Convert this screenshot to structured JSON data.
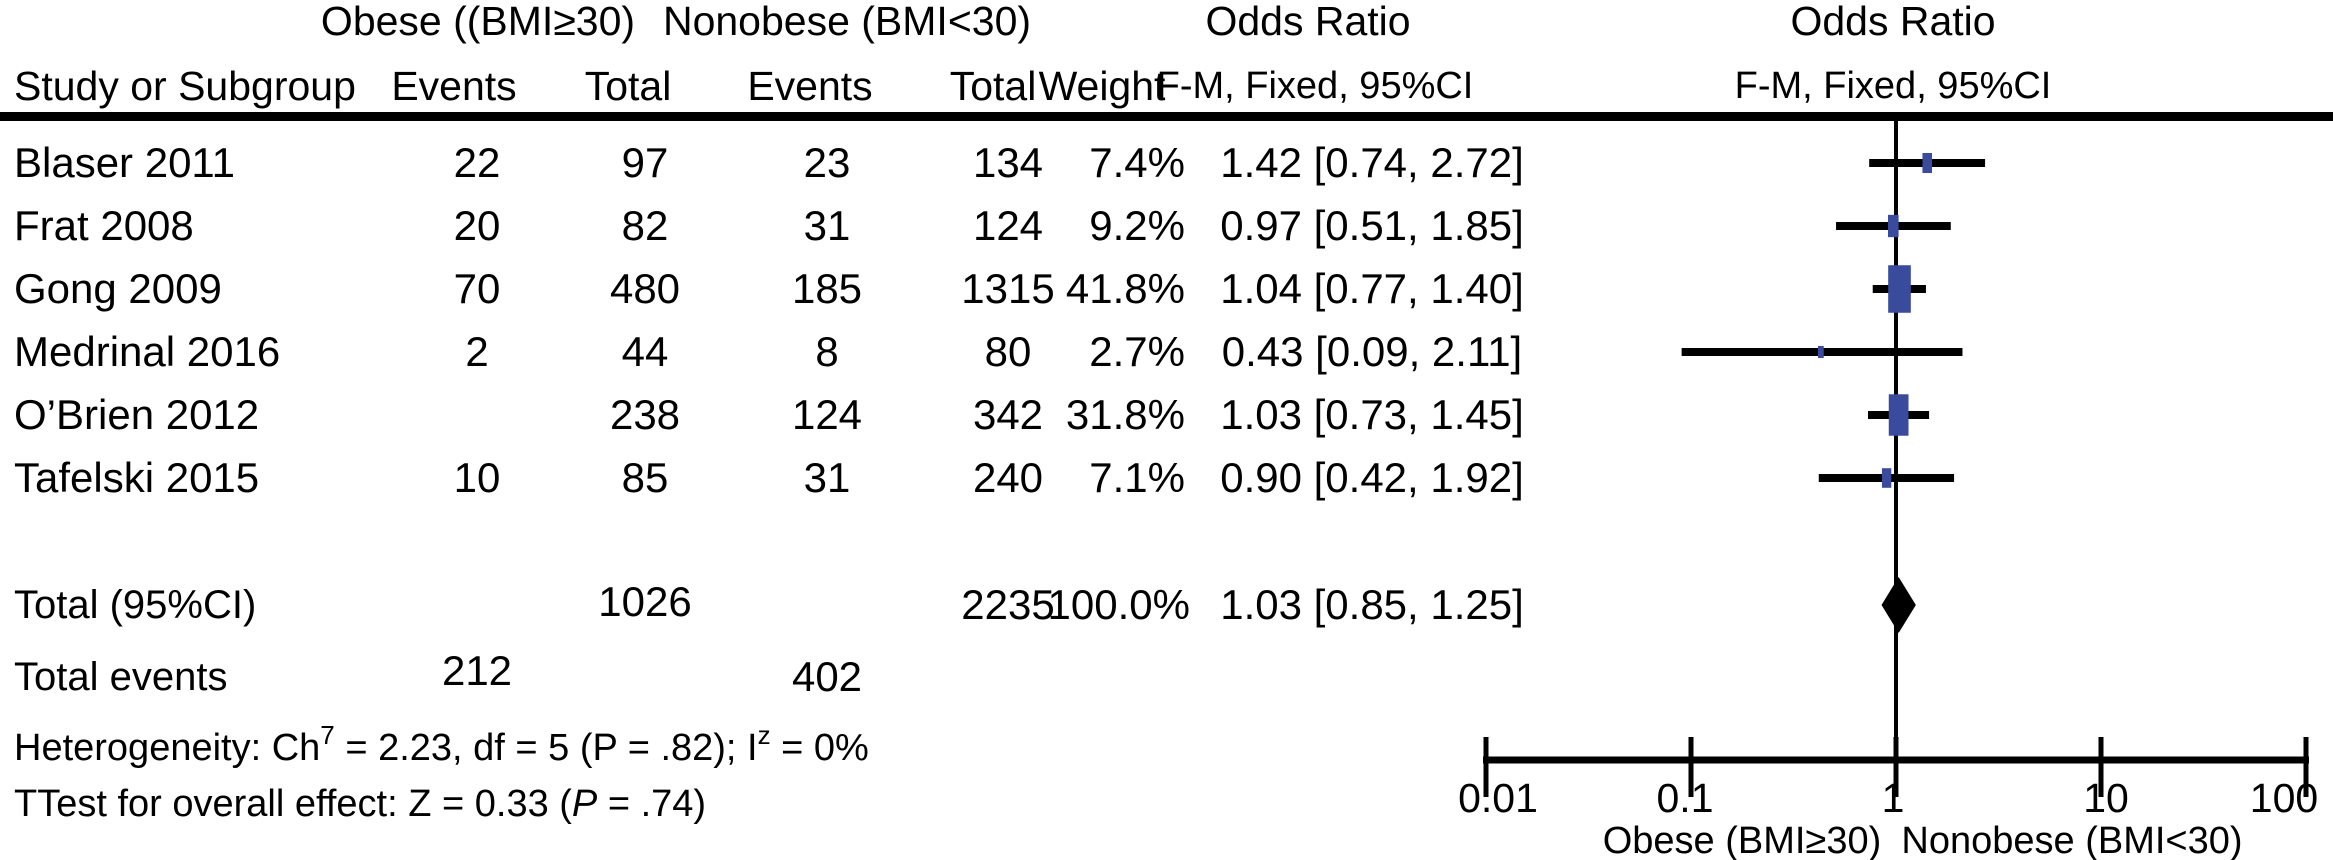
{
  "figure_title": "Forest plot: odds ratio, obese vs nonobese",
  "header": {
    "group1": "Obese ((BMI≥30)",
    "group2": "Nonobese (BMI<30)",
    "or_label_left": "Odds Ratio",
    "or_label_right": "Odds Ratio",
    "col_study": "Study or Subgroup",
    "col_events1": "Events",
    "col_total1": "Total",
    "col_events2": "Events",
    "col_total2": "Total",
    "col_weight": "Weight",
    "col_ci_left": "F-M, Fixed, 95%CI",
    "col_ci_right": "F-M, Fixed, 95%CI"
  },
  "table": {
    "rows": [
      {
        "study": "Blaser 2011",
        "obese_events": "22",
        "obese_total": "97",
        "nonobese_events": "23",
        "nonobese_total": "134",
        "weight": "7.4%",
        "or_ci": "1.42 [0.74, 2.72]"
      },
      {
        "study": "Frat 2008",
        "obese_events": "20",
        "obese_total": "82",
        "nonobese_events": "31",
        "nonobese_total": "124",
        "weight": "9.2%",
        "or_ci": "0.97 [0.51, 1.85]"
      },
      {
        "study": "Gong 2009",
        "obese_events": "70",
        "obese_total": "480",
        "nonobese_events": "185",
        "nonobese_total": "1315",
        "weight": "41.8%",
        "or_ci": "1.04 [0.77, 1.40]"
      },
      {
        "study": "Medrinal 2016",
        "obese_events": "2",
        "obese_total": "44",
        "nonobese_events": "8",
        "nonobese_total": "80",
        "weight": "2.7%",
        "or_ci": "0.43 [0.09, 2.11]"
      },
      {
        "study": "O’Brien 2012",
        "obese_events": "",
        "obese_total": "238",
        "nonobese_events": "124",
        "nonobese_total": "342",
        "weight": "31.8%",
        "or_ci": "1.03 [0.73, 1.45]"
      },
      {
        "study": "Tafelski 2015",
        "obese_events": "10",
        "obese_total": "85",
        "nonobese_events": "31",
        "nonobese_total": "240",
        "weight": "7.1%",
        "or_ci": "0.90 [0.42, 1.92]"
      }
    ],
    "total_row": {
      "label": "Total (95%CI)",
      "obese_total": "1026",
      "nonobese_total": "2235",
      "weight": "100.0%",
      "or_ci": "1.03 [0.85, 1.25]"
    },
    "total_events_row": {
      "label": "Total events",
      "obese_events": "212",
      "nonobese_events": "402"
    }
  },
  "footnotes": {
    "het_prefix": "Heterogeneity: Ch",
    "het_sup1": "7",
    "het_mid": " = 2.23, df = 5 (P = .82); I",
    "het_sup2": "z",
    "het_suffix": " = 0%",
    "test_prefix": "TTest for overall effect: Z = 0.33 (",
    "test_p": "P",
    "test_suffix": " = .74)"
  },
  "chart_data": {
    "type": "forest",
    "effect_measure": "Odds Ratio, F-M, Fixed, 95%CI",
    "x_axis": {
      "scale": "log10",
      "range": [
        0.01,
        100
      ],
      "ticks": [
        "0.01",
        "0.1",
        "1",
        "10",
        "100"
      ],
      "tick_values": [
        0.01,
        0.1,
        1,
        10,
        100
      ],
      "center_value": 1,
      "label_left": "Obese (BMI≥30)",
      "label_right": "Nonobese (BMI<30)"
    },
    "studies": [
      {
        "name": "Blaser 2011",
        "or": 1.42,
        "ci_low": 0.74,
        "ci_high": 2.72,
        "weight_pct": 7.4
      },
      {
        "name": "Frat 2008",
        "or": 0.97,
        "ci_low": 0.51,
        "ci_high": 1.85,
        "weight_pct": 9.2
      },
      {
        "name": "Gong 2009",
        "or": 1.04,
        "ci_low": 0.77,
        "ci_high": 1.4,
        "weight_pct": 41.8
      },
      {
        "name": "Medrinal 2016",
        "or": 0.43,
        "ci_low": 0.09,
        "ci_high": 2.11,
        "weight_pct": 2.7
      },
      {
        "name": "O’Brien 2012",
        "or": 1.03,
        "ci_low": 0.73,
        "ci_high": 1.45,
        "weight_pct": 31.8
      },
      {
        "name": "Tafelski 2015",
        "or": 0.9,
        "ci_low": 0.42,
        "ci_high": 1.92,
        "weight_pct": 7.1
      }
    ],
    "summary": {
      "name": "Total (95%CI)",
      "or": 1.03,
      "ci_low": 0.85,
      "ci_high": 1.25,
      "weight_pct": 100.0
    },
    "marker_color": "#3a4a9d",
    "line_color": "#000000",
    "diamond_color": "#000000"
  }
}
